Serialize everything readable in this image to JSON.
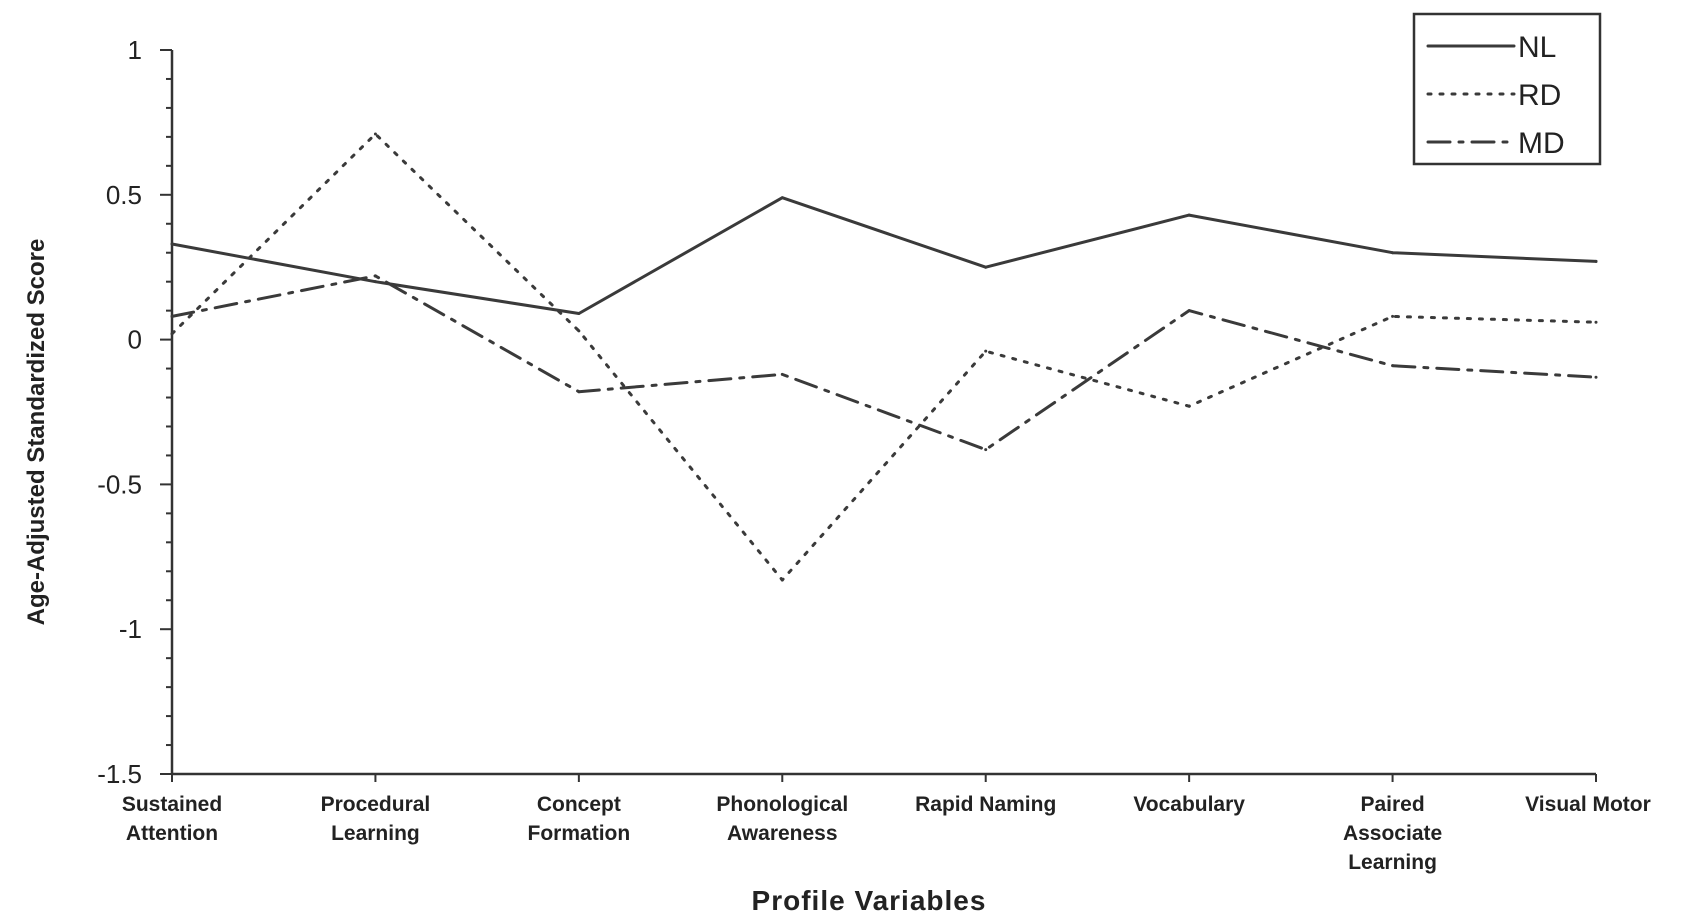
{
  "chart_data": {
    "type": "line",
    "xlabel": "Profile Variables",
    "ylabel": "Age-Adjusted Standardized Score",
    "ylim": [
      -1.5,
      1
    ],
    "yticks": [
      "1",
      "0.5",
      "0",
      "-0.5",
      "-1",
      "-1.5"
    ],
    "ytick_values": [
      1,
      0.5,
      0,
      -0.5,
      -1,
      -1.5
    ],
    "categories": [
      [
        "Sustained",
        "Attention"
      ],
      [
        "Procedural",
        "Learning"
      ],
      [
        "Concept",
        "Formation"
      ],
      [
        "Phonological",
        "Awareness"
      ],
      [
        "Rapid Naming"
      ],
      [
        "Vocabulary"
      ],
      [
        "Paired",
        "Associate",
        "Learning"
      ],
      [
        "Visual Motor"
      ]
    ],
    "series": [
      {
        "name": "NL",
        "dash": "solid",
        "values": [
          0.33,
          0.2,
          0.09,
          0.49,
          0.25,
          0.43,
          0.3,
          0.27
        ]
      },
      {
        "name": "RD",
        "dash": "dotted",
        "values": [
          0.02,
          0.71,
          0.03,
          -0.83,
          -0.04,
          -0.23,
          0.08,
          0.06
        ]
      },
      {
        "name": "MD",
        "dash": "dashdot",
        "values": [
          0.08,
          0.22,
          -0.18,
          -0.12,
          -0.38,
          0.1,
          -0.09,
          -0.13
        ]
      }
    ],
    "legend_position": "top-right",
    "grid": false
  }
}
